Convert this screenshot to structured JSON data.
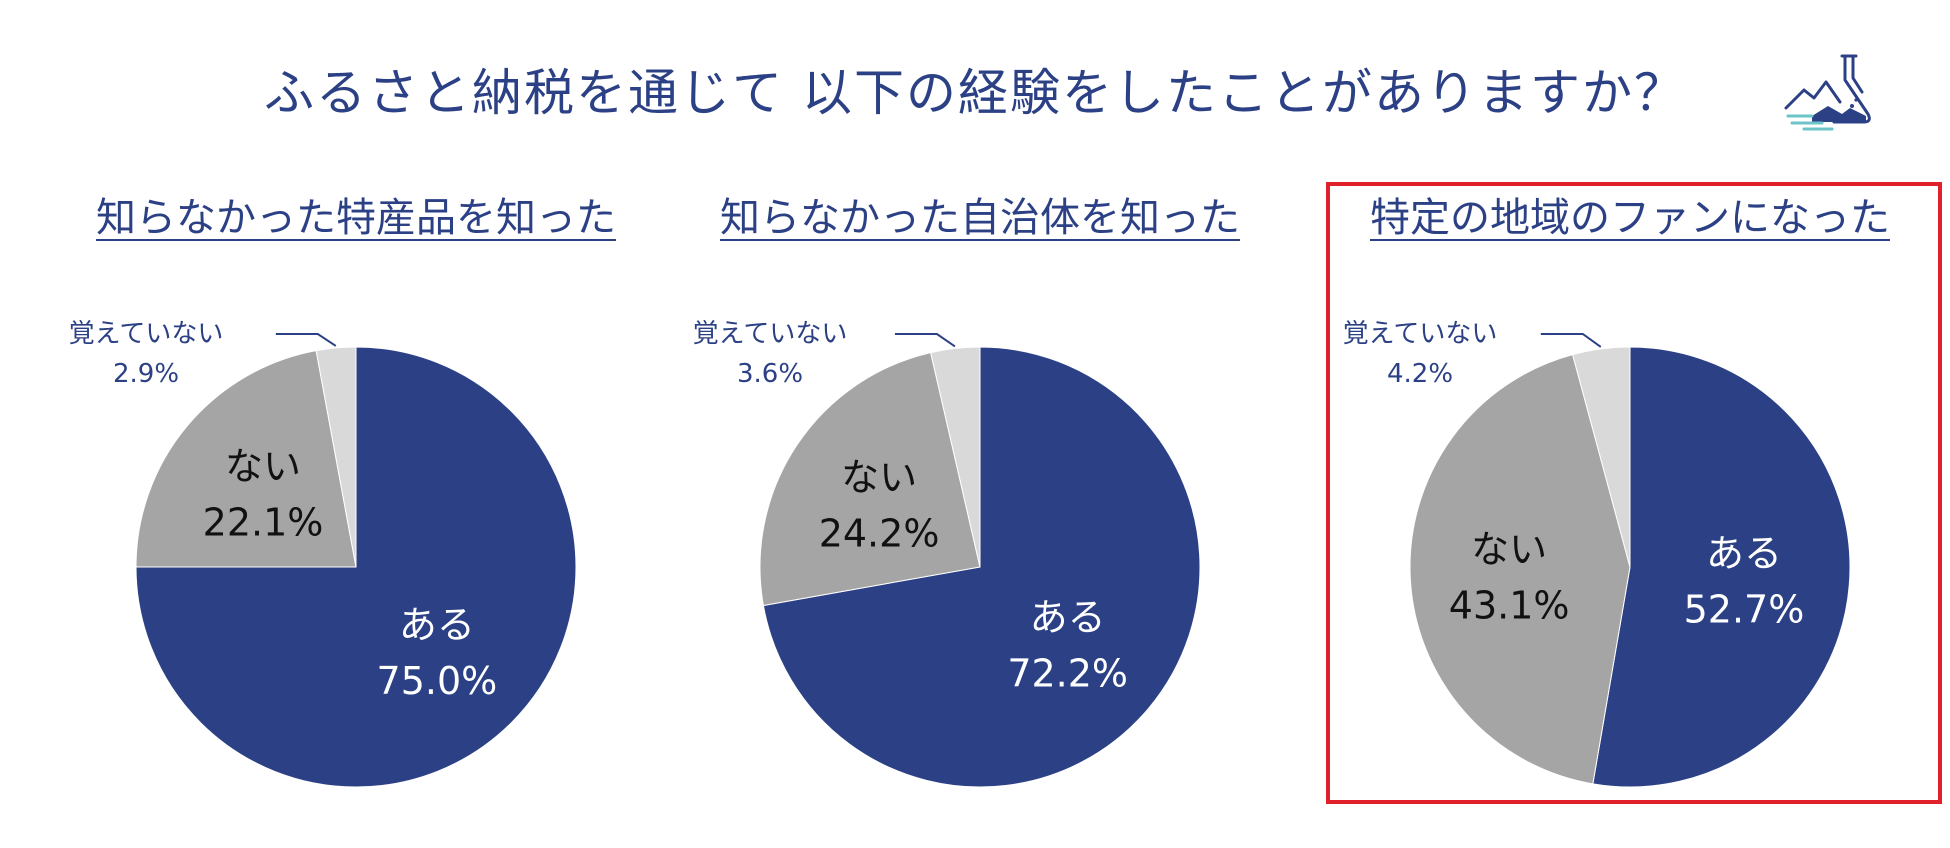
{
  "title": "ふるさと納税を通じて 以下の経験をしたことがありますか？",
  "icon": "flask-landscape-icon",
  "colors": {
    "title": "#2c4185",
    "aru": "#2c4185",
    "nai": "#a5a5a5",
    "oboeteinai": "#d9d9d9",
    "highlight": "#e0202a"
  },
  "chart_data": [
    {
      "type": "pie",
      "title": "知らなかった特産品を知った",
      "slices": [
        {
          "label": "ある",
          "value": 75.0,
          "display": "75.0%"
        },
        {
          "label": "ない",
          "value": 22.1,
          "display": "22.1%"
        },
        {
          "label": "覚えていない",
          "value": 2.9,
          "display": "2.9%"
        }
      ],
      "highlighted": false
    },
    {
      "type": "pie",
      "title": "知らなかった自治体を知った",
      "slices": [
        {
          "label": "ある",
          "value": 72.2,
          "display": "72.2%"
        },
        {
          "label": "ない",
          "value": 24.2,
          "display": "24.2%"
        },
        {
          "label": "覚えていない",
          "value": 3.6,
          "display": "3.6%"
        }
      ],
      "highlighted": false
    },
    {
      "type": "pie",
      "title": "特定の地域のファンになった",
      "slices": [
        {
          "label": "ある",
          "value": 52.7,
          "display": "52.7%"
        },
        {
          "label": "ない",
          "value": 43.1,
          "display": "43.1%"
        },
        {
          "label": "覚えていない",
          "value": 4.2,
          "display": "4.2%"
        }
      ],
      "highlighted": true
    }
  ]
}
